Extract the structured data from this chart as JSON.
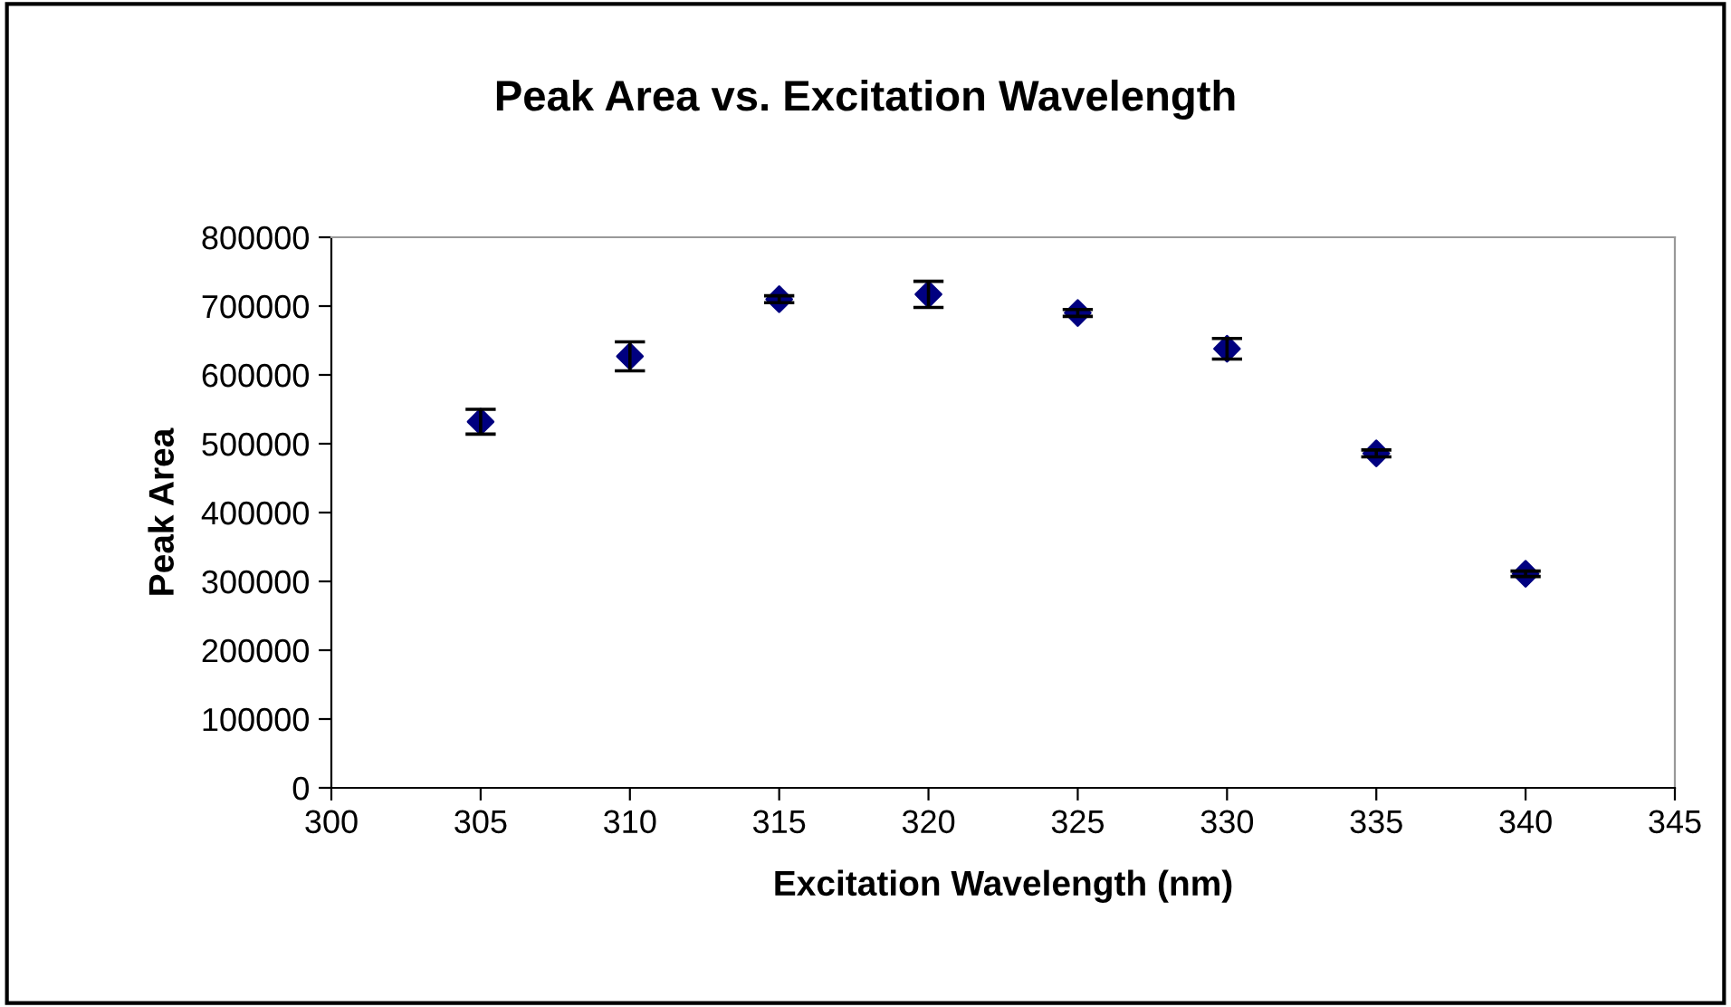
{
  "chart_data": {
    "type": "scatter",
    "title": "Peak Area vs. Excitation Wavelength",
    "xlabel": "Excitation Wavelength (nm)",
    "ylabel": "Peak Area",
    "x": [
      305,
      310,
      315,
      320,
      325,
      330,
      335,
      340
    ],
    "series": [
      {
        "color": "#000080",
        "values": [
          532000,
          627000,
          710000,
          717000,
          690000,
          638000,
          486000,
          311000
        ],
        "errors": [
          18000,
          21000,
          5000,
          19000,
          5000,
          15000,
          5000,
          4000
        ]
      }
    ],
    "xlim": [
      300,
      345
    ],
    "xticks": [
      300,
      305,
      310,
      315,
      320,
      325,
      330,
      335,
      340,
      345
    ],
    "ylim": [
      0,
      800000
    ],
    "yticks": [
      0,
      100000,
      200000,
      300000,
      400000,
      500000,
      600000,
      700000,
      800000
    ],
    "marker": "diamond",
    "grid": false,
    "legend": false
  }
}
